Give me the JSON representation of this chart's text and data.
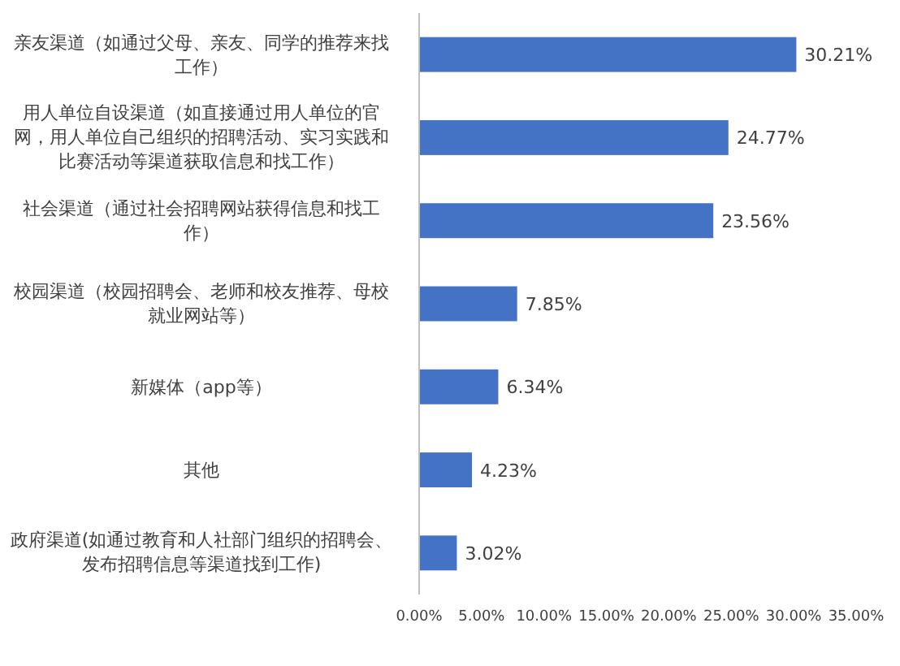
{
  "chart_data": {
    "type": "bar",
    "orientation": "horizontal",
    "categories": [
      "亲友渠道（如通过父母、亲友、同学的推荐来找工作）",
      "用人单位自设渠道（如直接通过用人单位的官网，用人单位自己组织的招聘活动、实习实践和比赛活动等渠道获取信息和找工作）",
      "社会渠道（通过社会招聘网站获得信息和找工作）",
      "校园渠道（校园招聘会、老师和校友推荐、母校就业网站等）",
      "新媒体（app等）",
      "其他",
      "政府渠道(如通过教育和人社部门组织的招聘会、发布招聘信息等渠道找到工作)"
    ],
    "values": [
      30.21,
      24.77,
      23.56,
      7.85,
      6.34,
      4.23,
      3.02
    ],
    "value_labels": [
      "30.21%",
      "24.77%",
      "23.56%",
      "7.85%",
      "6.34%",
      "4.23%",
      "3.02%"
    ],
    "color": "#4472c4",
    "xlim": [
      0,
      35
    ],
    "xticks": [
      {
        "value": 0,
        "label": "0.00%"
      },
      {
        "value": 5,
        "label": "5.00%"
      },
      {
        "value": 10,
        "label": "10.00%"
      },
      {
        "value": 15,
        "label": "15.00%"
      },
      {
        "value": 20,
        "label": "20.00%"
      },
      {
        "value": 25,
        "label": "25.00%"
      },
      {
        "value": 30,
        "label": "30.00%"
      },
      {
        "value": 35,
        "label": "35.00%"
      }
    ],
    "grid": false
  }
}
